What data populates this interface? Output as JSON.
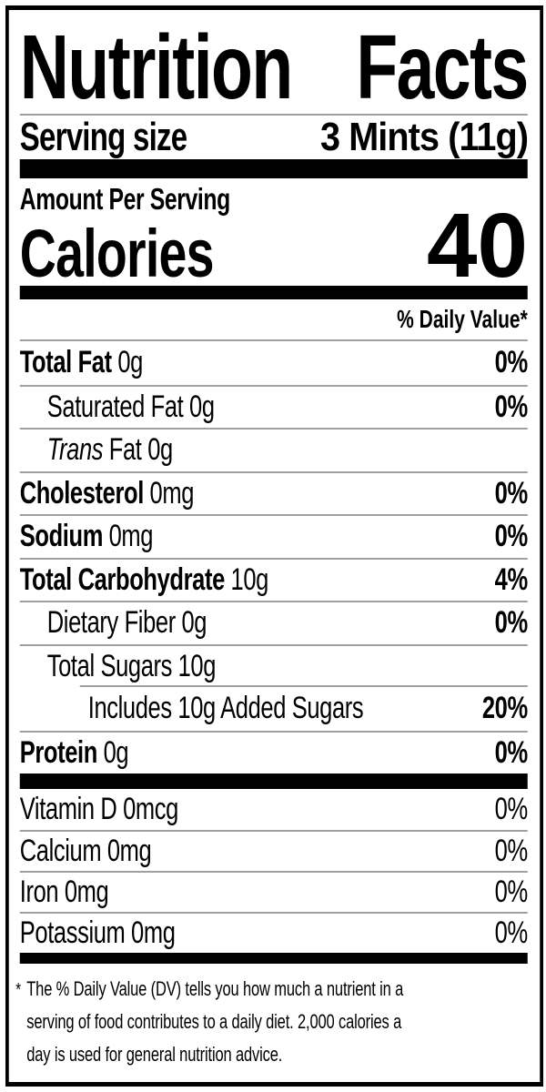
{
  "title": "Nutrition Facts",
  "serving": {
    "label": "Serving size",
    "value": "3 Mints (11g)"
  },
  "amount_per_serving": "Amount Per Serving",
  "calories": {
    "label": "Calories",
    "value": "40"
  },
  "daily_value_header": "% Daily Value*",
  "nutrients": [
    {
      "name": "Total Fat",
      "amount": "0g",
      "dv": "0%"
    },
    {
      "name": "Saturated Fat",
      "amount": "0g",
      "dv": "0%"
    },
    {
      "name": "Trans",
      "amount": "Fat 0g",
      "dv": ""
    },
    {
      "name": "Cholesterol",
      "amount": "0mg",
      "dv": "0%"
    },
    {
      "name": "Sodium",
      "amount": "0mg",
      "dv": "0%"
    },
    {
      "name": "Total Carbohydrate",
      "amount": "10g",
      "dv": "4%"
    },
    {
      "name": "Dietary Fiber",
      "amount": "0g",
      "dv": "0%"
    },
    {
      "name": "Total Sugars",
      "amount": "10g",
      "dv": ""
    },
    {
      "name": "Includes 10g Added Sugars",
      "amount": "",
      "dv": "20%"
    },
    {
      "name": "Protein",
      "amount": "0g",
      "dv": "0%"
    }
  ],
  "micronutrients": [
    {
      "name": "Vitamin D",
      "amount": "0mcg",
      "dv": "0%"
    },
    {
      "name": "Calcium",
      "amount": "0mg",
      "dv": "0%"
    },
    {
      "name": "Iron",
      "amount": "0mg",
      "dv": "0%"
    },
    {
      "name": "Potassium",
      "amount": "0mg",
      "dv": "0%"
    }
  ],
  "footnote": {
    "marker": "*",
    "lines": [
      "The % Daily Value (DV) tells you how much a nutrient in a",
      "serving of food contributes to a daily diet. 2,000 calories a",
      "day is used for general nutrition advice."
    ]
  },
  "colors": {
    "text": "#000000",
    "divider": "#a0a0a0",
    "background": "#ffffff"
  }
}
